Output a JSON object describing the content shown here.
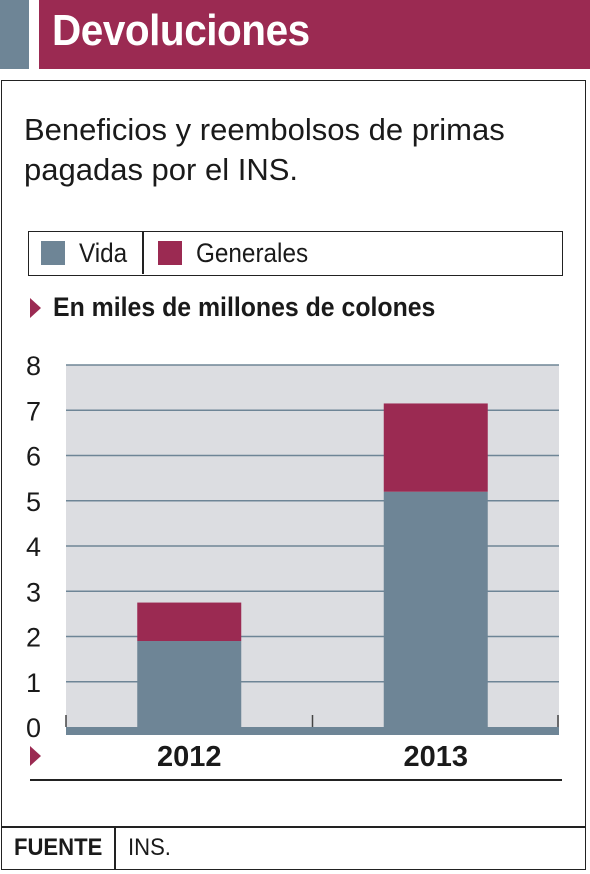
{
  "header": {
    "title": "Devoluciones"
  },
  "colors": {
    "vida": "#6e8596",
    "generales": "#9b2a52",
    "plot_bg": "#dcdde1",
    "grid": "#6e8596"
  },
  "legend": {
    "vida_label": "Vida",
    "generales_label": "Generales"
  },
  "unit_label": "En miles de millones de colones",
  "footer": {
    "label": "FUENTE",
    "value": "INS."
  },
  "chart_data": {
    "type": "bar",
    "stacked": true,
    "title": "Beneficios y reembolsos de primas  pagadas por el INS.",
    "ylabel": "En miles de millones de colones",
    "categories": [
      "2012",
      "2013"
    ],
    "series": [
      {
        "name": "Vida",
        "values": [
          1.9,
          5.2
        ]
      },
      {
        "name": "Generales",
        "values": [
          0.85,
          1.95
        ]
      }
    ],
    "ylim": [
      0,
      8
    ],
    "yticks": [
      "0",
      "1",
      "2",
      "3",
      "4",
      "5",
      "6",
      "7",
      "8"
    ],
    "grid": true,
    "legend_position": "top"
  }
}
